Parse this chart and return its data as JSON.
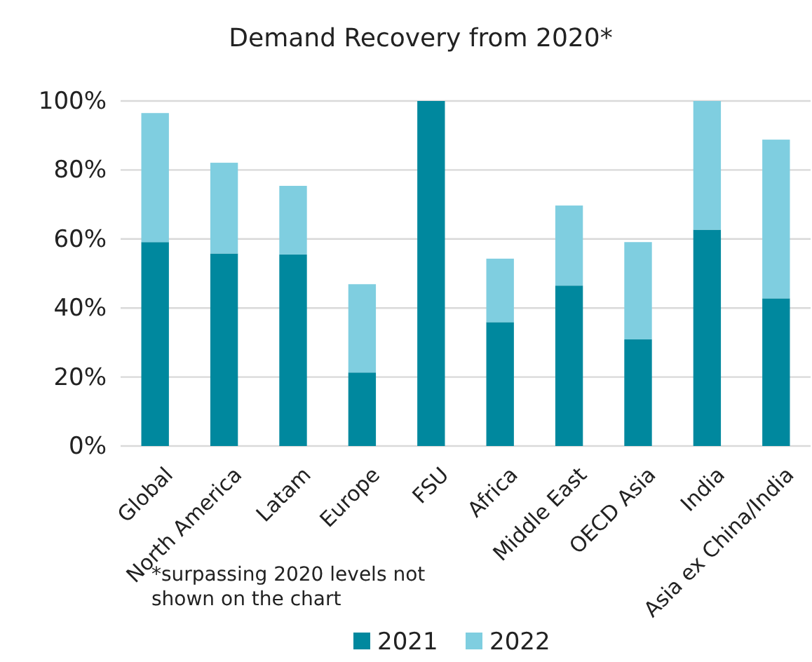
{
  "chart_data": {
    "type": "bar",
    "title": "Demand Recovery from 2020*",
    "categories": [
      "Global",
      "North America",
      "Latam",
      "Europe",
      "FSU",
      "Africa",
      "Middle East",
      "OECD Asia",
      "India",
      "Asia ex China/India"
    ],
    "series": [
      {
        "name": "2021",
        "color": "#00889e",
        "values": [
          59.1,
          55.8,
          55.5,
          21.3,
          100,
          35.9,
          46.5,
          30.9,
          62.7,
          42.8
        ]
      },
      {
        "name": "2022",
        "color": "#7fcee0",
        "values": [
          37.4,
          26.3,
          19.9,
          25.6,
          0,
          18.4,
          23.2,
          28.2,
          37.3,
          46.0
        ]
      }
    ],
    "stacked": true,
    "ylim": [
      0,
      100
    ],
    "yticks": [
      {
        "value": 0,
        "label": "0%"
      },
      {
        "value": 20,
        "label": "20%"
      },
      {
        "value": 40,
        "label": "40%"
      },
      {
        "value": 60,
        "label": "60%"
      },
      {
        "value": 80,
        "label": "80%"
      },
      {
        "value": 100,
        "label": "100%"
      }
    ],
    "grid": "y",
    "legend": "bottom",
    "annotations": [
      "*surpassing 2020 levels not shown on the chart"
    ]
  }
}
